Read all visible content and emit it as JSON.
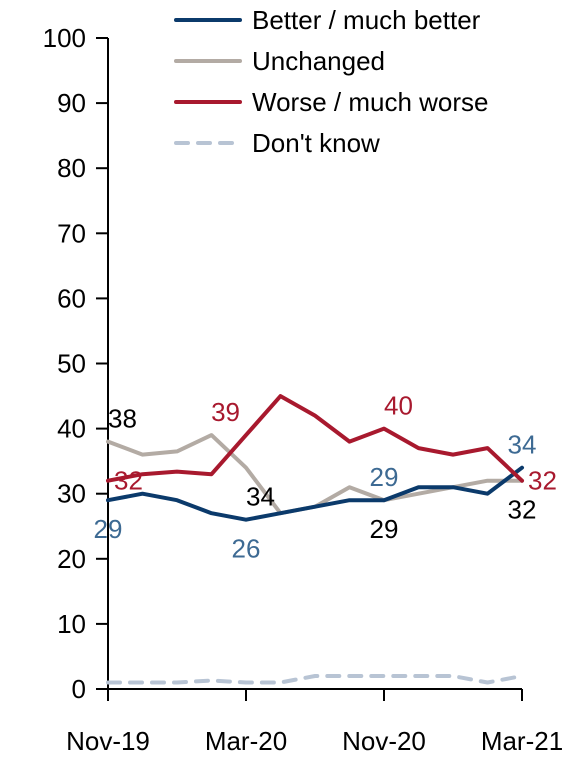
{
  "chart_data": {
    "type": "line",
    "title": "",
    "xlabel": "",
    "ylabel": "",
    "ylim": [
      0,
      100
    ],
    "y_ticks": [
      0,
      10,
      20,
      30,
      40,
      50,
      60,
      70,
      80,
      90,
      100
    ],
    "x_tick_labels": [
      {
        "index": 0,
        "label": "Nov-19"
      },
      {
        "index": 4,
        "label": "Mar-20"
      },
      {
        "index": 8,
        "label": "Nov-20"
      },
      {
        "index": 12,
        "label": "Mar-21"
      }
    ],
    "legend": {
      "position": "top-right"
    },
    "grid": false,
    "series": [
      {
        "name": "Better / much better",
        "color": "#0b3a6b",
        "dashed": false,
        "values": [
          29,
          30,
          29,
          27,
          26,
          27,
          28,
          29,
          29,
          31,
          31,
          30,
          34
        ],
        "labels": [
          {
            "index": 0,
            "text": "29",
            "color": "#3d6a93",
            "pos": "below"
          },
          {
            "index": 4,
            "text": "26",
            "color": "#3d6a93",
            "pos": "below"
          },
          {
            "index": 8,
            "text": "29",
            "color": "#3d6a93",
            "pos": "above"
          },
          {
            "index": 12,
            "text": "34",
            "color": "#3d6a93",
            "pos": "above"
          }
        ]
      },
      {
        "name": "Unchanged",
        "color": "#b3aba4",
        "dashed": false,
        "values": [
          38,
          36,
          36.5,
          39,
          34,
          27,
          28,
          31,
          29,
          30,
          31,
          32,
          32
        ],
        "labels": [
          {
            "index": 0,
            "text": "38",
            "color": "#000000",
            "pos": "above-right"
          },
          {
            "index": 4,
            "text": "34",
            "color": "#000000",
            "pos": "below-right"
          },
          {
            "index": 8,
            "text": "29",
            "color": "#000000",
            "pos": "below"
          },
          {
            "index": 12,
            "text": "32",
            "color": "#000000",
            "pos": "below"
          }
        ]
      },
      {
        "name": "Worse / much worse",
        "color": "#a8192e",
        "dashed": false,
        "values": [
          32,
          33,
          33.4,
          33,
          39,
          45,
          42,
          38,
          40,
          37,
          36,
          37,
          32
        ],
        "labels": [
          {
            "index": 0,
            "text": "32",
            "color": "#a8192e",
            "pos": "right"
          },
          {
            "index": 4,
            "text": "39",
            "color": "#a8192e",
            "pos": "above-left"
          },
          {
            "index": 8,
            "text": "40",
            "color": "#a8192e",
            "pos": "above-right"
          },
          {
            "index": 12,
            "text": "32",
            "color": "#a8192e",
            "pos": "right"
          }
        ]
      },
      {
        "name": "Don't know",
        "color": "#b8c4d4",
        "dashed": true,
        "values": [
          1,
          1,
          1,
          1.3,
          1,
          1,
          2,
          2,
          2,
          2,
          2,
          1,
          2
        ],
        "labels": []
      }
    ]
  }
}
